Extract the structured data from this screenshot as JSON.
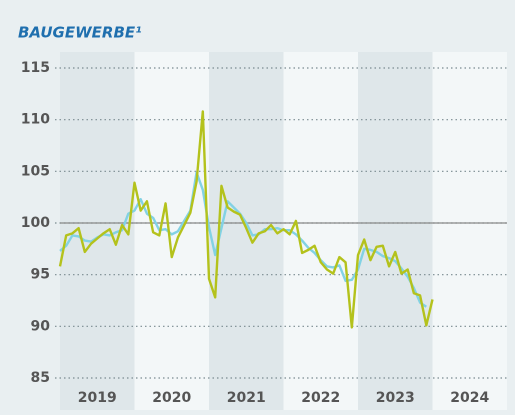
{
  "chart_data": {
    "type": "line",
    "title": "BAUGEWERBE¹",
    "x": [
      2019,
      2019.083,
      2019.167,
      2019.25,
      2019.333,
      2019.417,
      2019.5,
      2019.583,
      2019.667,
      2019.75,
      2019.833,
      2019.917,
      2020,
      2020.083,
      2020.167,
      2020.25,
      2020.333,
      2020.417,
      2020.5,
      2020.583,
      2020.667,
      2020.75,
      2020.833,
      2020.917,
      2021,
      2021.083,
      2021.167,
      2021.25,
      2021.333,
      2021.417,
      2021.5,
      2021.583,
      2021.667,
      2021.75,
      2021.833,
      2021.917,
      2022,
      2022.083,
      2022.167,
      2022.25,
      2022.333,
      2022.417,
      2022.5,
      2022.583,
      2022.667,
      2022.75,
      2022.833,
      2022.917,
      2023,
      2023.083,
      2023.167,
      2023.25,
      2023.333,
      2023.417,
      2023.5,
      2023.583,
      2023.667,
      2023.75,
      2023.833,
      2023.917,
      2024
    ],
    "series": [
      {
        "color": "#82d2e4",
        "values": [
          97.3,
          97.8,
          98.8,
          98.7,
          98.3,
          98.2,
          98.6,
          98.9,
          98.8,
          99.1,
          99.3,
          100.9,
          101.2,
          102.3,
          100.9,
          100.5,
          99.3,
          99.4,
          98.9,
          99.2,
          100.2,
          101.2,
          104.9,
          103.2,
          99.6,
          96.9,
          99.5,
          102.1,
          101.5,
          100.9,
          100,
          98.8,
          98.9,
          99.4,
          99.4,
          99.5,
          99.3,
          99.3,
          98.9,
          98.3,
          97.6,
          97.1,
          96.4,
          95.8,
          95.7,
          95.9,
          94.4,
          94.5,
          95.5,
          97.5,
          97.4,
          97.2,
          96.8,
          96.6,
          96.3,
          95.6,
          94.8,
          93.7,
          92.3,
          91.9,
          null
        ]
      },
      {
        "color": "#b4c21c",
        "values": [
          95.8,
          98.8,
          99,
          99.5,
          97.2,
          98,
          98.5,
          99,
          99.4,
          97.9,
          99.8,
          98.9,
          103.9,
          101.2,
          102.1,
          99.1,
          98.8,
          101.9,
          96.7,
          98.6,
          99.8,
          101,
          104,
          110.8,
          94.6,
          92.8,
          103.6,
          101.5,
          101.1,
          100.8,
          99.5,
          98.1,
          99,
          99.2,
          99.8,
          99,
          99.4,
          98.9,
          100.2,
          97.1,
          97.4,
          97.8,
          96.2,
          95.5,
          95.1,
          96.7,
          96.2,
          89.9,
          96.9,
          98.4,
          96.4,
          97.7,
          97.8,
          95.8,
          97.2,
          95.1,
          95.5,
          93.2,
          93,
          90.1,
          92.6
        ]
      }
    ],
    "xlim": [
      2019,
      2025
    ],
    "xticks": [
      {
        "value": 2019.5,
        "label": "2019"
      },
      {
        "value": 2020.5,
        "label": "2020"
      },
      {
        "value": 2021.5,
        "label": "2021"
      },
      {
        "value": 2022.5,
        "label": "2022"
      },
      {
        "value": 2023.5,
        "label": "2023"
      },
      {
        "value": 2024.5,
        "label": "2024"
      }
    ],
    "ylim": [
      85,
      115
    ],
    "yticks": [
      85,
      90,
      95,
      100,
      105,
      110,
      115
    ],
    "reference_line": 100
  }
}
